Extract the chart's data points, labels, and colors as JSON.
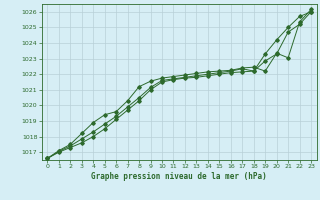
{
  "title": "Graphe pression niveau de la mer (hPa)",
  "bg_color": "#d6eef5",
  "plot_bg_color": "#d6eef5",
  "grid_color": "#b8d0d8",
  "line_color": "#2d6a2d",
  "xlim": [
    -0.5,
    23.5
  ],
  "ylim": [
    1016.5,
    1026.5
  ],
  "yticks": [
    1017,
    1018,
    1019,
    1020,
    1021,
    1022,
    1023,
    1024,
    1025,
    1026
  ],
  "xticks": [
    0,
    1,
    2,
    3,
    4,
    5,
    6,
    7,
    8,
    9,
    10,
    11,
    12,
    13,
    14,
    15,
    16,
    17,
    18,
    19,
    20,
    21,
    22,
    23
  ],
  "series": [
    [
      1016.6,
      1017.0,
      1017.3,
      1017.6,
      1018.0,
      1018.5,
      1019.1,
      1019.7,
      1020.3,
      1021.0,
      1021.5,
      1021.65,
      1021.75,
      1021.8,
      1021.9,
      1022.0,
      1022.1,
      1022.15,
      1022.2,
      1023.3,
      1024.2,
      1025.0,
      1025.7,
      1026.0
    ],
    [
      1016.6,
      1017.05,
      1017.4,
      1017.85,
      1018.3,
      1018.8,
      1019.3,
      1019.9,
      1020.5,
      1021.15,
      1021.6,
      1021.7,
      1021.8,
      1021.9,
      1022.0,
      1022.1,
      1022.2,
      1022.35,
      1022.2,
      1022.85,
      1023.3,
      1024.7,
      1025.2,
      1026.0
    ],
    [
      1016.6,
      1017.1,
      1017.5,
      1018.2,
      1018.9,
      1019.4,
      1019.6,
      1020.3,
      1021.2,
      1021.55,
      1021.75,
      1021.85,
      1021.95,
      1022.05,
      1022.15,
      1022.2,
      1022.25,
      1022.4,
      1022.45,
      1022.2,
      1023.35,
      1023.05,
      1025.35,
      1026.15
    ]
  ]
}
